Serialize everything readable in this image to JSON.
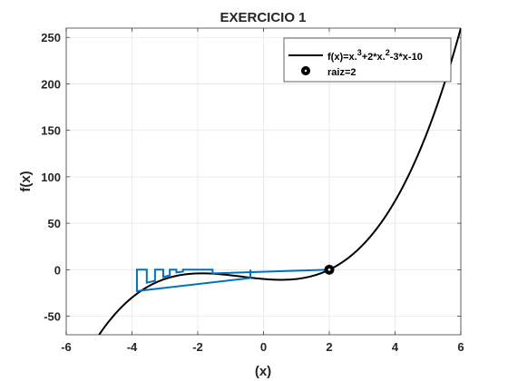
{
  "chart_data": {
    "type": "line",
    "title": "EXERCICIO 1",
    "xlabel": "(x)",
    "ylabel": "f(x)",
    "xlim": [
      -6,
      6
    ],
    "ylim": [
      -70,
      260
    ],
    "xticks": [
      -6,
      -4,
      -2,
      0,
      2,
      4,
      6
    ],
    "yticks": [
      -50,
      0,
      50,
      100,
      150,
      200,
      250
    ],
    "grid": true,
    "legend_position": "top-right",
    "colors": {
      "function": "#000000",
      "iteration": "#0072BD",
      "root_marker": "#000000",
      "axes": "#262626",
      "grid": "#e6e6e6"
    },
    "series": [
      {
        "name_prefix": "f(x)=x.",
        "name_sup1": "3",
        "name_mid": "+2*x.",
        "name_sup2": "2",
        "name_suffix": "-3*x-10",
        "kind": "line",
        "function_coefficients": [
          1,
          2,
          -3,
          -10
        ],
        "x_range": [
          -6,
          6
        ]
      },
      {
        "name": "raiz=2",
        "kind": "marker",
        "x": [
          2
        ],
        "y": [
          0
        ]
      },
      {
        "kind": "line",
        "x": [
          -0.4,
          -0.4,
          -3.85,
          -3.85,
          -3.55,
          -3.55,
          -3.3,
          -3.3,
          -3.05,
          -3.05,
          -2.85,
          -2.85,
          -2.65,
          -2.65,
          -2.45,
          -2.45,
          -1.55,
          -1.55,
          2
        ],
        "y": [
          0,
          -9,
          -23,
          0,
          0,
          -14,
          -12,
          0,
          0,
          -8,
          -6,
          0,
          0,
          -3,
          -2,
          0,
          0,
          -4,
          0
        ]
      }
    ]
  }
}
